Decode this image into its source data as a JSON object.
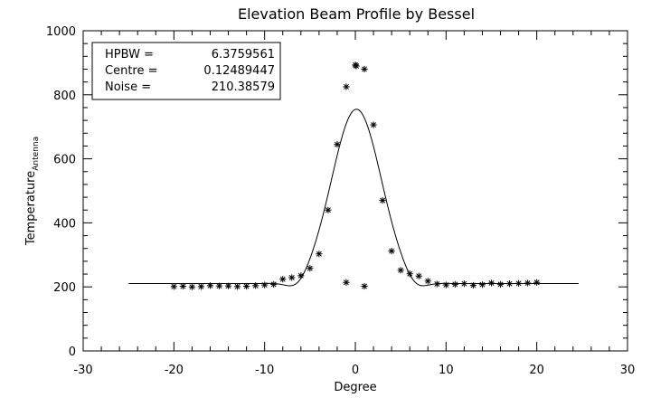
{
  "chart_data": {
    "type": "scatter",
    "title": "Elevation Beam Profile by Bessel",
    "xlabel": "Degree",
    "ylabel_main": "Temperature",
    "ylabel_sub": "Antenna",
    "xlim": [
      -30,
      30
    ],
    "ylim": [
      0,
      1000
    ],
    "x_ticks": [
      -30,
      -20,
      -10,
      0,
      10,
      20,
      30
    ],
    "y_ticks": [
      0,
      200,
      400,
      600,
      800,
      1000
    ],
    "legend_box": {
      "placement": "top-left",
      "rows": [
        {
          "label": "HPBW =",
          "value": "6.3759561"
        },
        {
          "label": "Centre =",
          "value": "0.12489447"
        },
        {
          "label": "Noise =",
          "value": "210.38579"
        }
      ]
    },
    "fit": {
      "type": "line",
      "x_range": [
        -25,
        24.6
      ],
      "baseline": 210.38579,
      "centre": 0.12489447,
      "hpbw": 6.3759561,
      "peak": 755
    },
    "points": [
      {
        "x": -20,
        "y": 201
      },
      {
        "x": -19,
        "y": 202
      },
      {
        "x": -18,
        "y": 200
      },
      {
        "x": -17,
        "y": 201
      },
      {
        "x": -16,
        "y": 204
      },
      {
        "x": -15,
        "y": 203
      },
      {
        "x": -14,
        "y": 203
      },
      {
        "x": -13,
        "y": 201
      },
      {
        "x": -12,
        "y": 202
      },
      {
        "x": -11,
        "y": 204
      },
      {
        "x": -10,
        "y": 206
      },
      {
        "x": -9,
        "y": 208
      },
      {
        "x": -8,
        "y": 224
      },
      {
        "x": -7,
        "y": 229
      },
      {
        "x": -6,
        "y": 235
      },
      {
        "x": -5,
        "y": 258
      },
      {
        "x": -4,
        "y": 303
      },
      {
        "x": -3,
        "y": 440
      },
      {
        "x": -2,
        "y": 645
      },
      {
        "x": -1,
        "y": 825
      },
      {
        "x": -1,
        "y": 214
      },
      {
        "x": 0,
        "y": 893
      },
      {
        "x": 0.1,
        "y": 890
      },
      {
        "x": 1,
        "y": 880
      },
      {
        "x": 1,
        "y": 202
      },
      {
        "x": 2,
        "y": 706
      },
      {
        "x": 3,
        "y": 470
      },
      {
        "x": 4,
        "y": 312
      },
      {
        "x": 5,
        "y": 252
      },
      {
        "x": 6,
        "y": 241
      },
      {
        "x": 7,
        "y": 234
      },
      {
        "x": 8,
        "y": 218
      },
      {
        "x": 9,
        "y": 209
      },
      {
        "x": 10,
        "y": 206
      },
      {
        "x": 11,
        "y": 208
      },
      {
        "x": 12,
        "y": 210
      },
      {
        "x": 13,
        "y": 205
      },
      {
        "x": 14,
        "y": 207
      },
      {
        "x": 15,
        "y": 212
      },
      {
        "x": 16,
        "y": 208
      },
      {
        "x": 17,
        "y": 210
      },
      {
        "x": 18,
        "y": 211
      },
      {
        "x": 19,
        "y": 212
      },
      {
        "x": 20,
        "y": 214
      }
    ]
  }
}
